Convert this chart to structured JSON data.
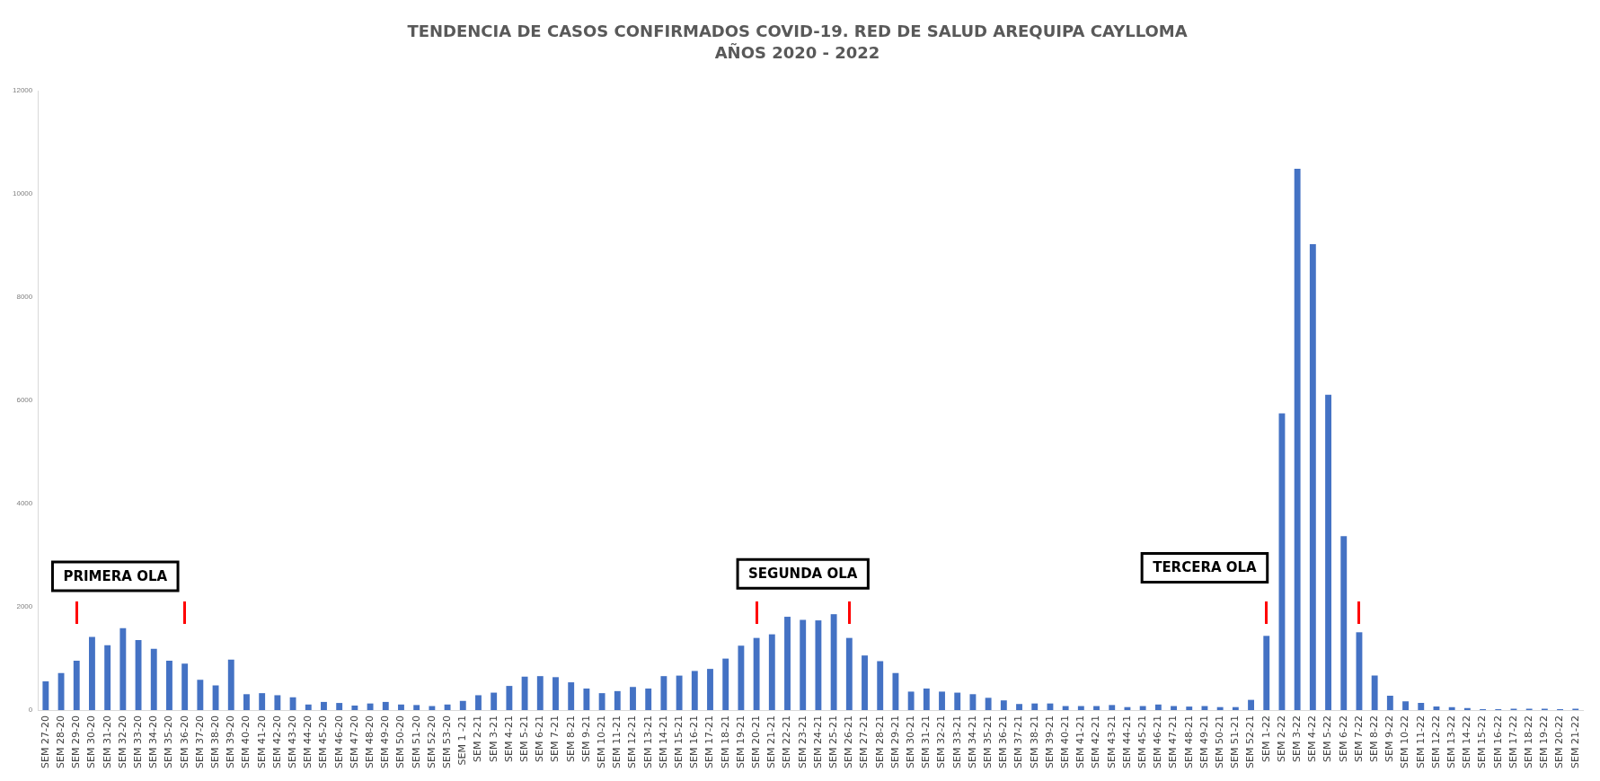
{
  "chart_data": {
    "type": "bar",
    "title": "TENDENCIA DE CASOS CONFIRMADOS COVID-19. RED DE SALUD AREQUIPA CAYLLOMA",
    "subtitle": "AÑOS 2020 - 2022",
    "categories": [
      "SEM 27-20",
      "SEM 28-20",
      "SEM 29-20",
      "SEM 30-20",
      "SEM 31-20",
      "SEM 32-20",
      "SEM 33-20",
      "SEM 34-20",
      "SEM 35-20",
      "SEM 36-20",
      "SEM 37-20",
      "SEM 38-20",
      "SEM 39-20",
      "SEM 40-20",
      "SEM 41-20",
      "SEM 42-20",
      "SEM 43-20",
      "SEM 44-20",
      "SEM 45-20",
      "SEM 46-20",
      "SEM 47-20",
      "SEM 48-20",
      "SEM 49-20",
      "SEM 50-20",
      "SEM 51-20",
      "SEM 52-20",
      "SEM 53-20",
      "SEM 1 -21",
      "SEM 2-21",
      "SEM 3-21",
      "SEM 4-21",
      "SEM 5-21",
      "SEM 6-21",
      "SEM 7-21",
      "SEM 8-21",
      "SEM 9-21",
      "SEM 10-21",
      "SEM 11-21",
      "SEM 12-21",
      "SEM 13-21",
      "SEM 14-21",
      "SEM 15-21",
      "SEM 16-21",
      "SEM 17-21",
      "SEM 18-21",
      "SEM 19-21",
      "SEM 20-21",
      "SEM 21-21",
      "SEM 22-21",
      "SEM 23-21",
      "SEM 24-21",
      "SEM 25-21",
      "SEM 26-21",
      "SEM 27-21",
      "SEM 28-21",
      "SEM 29-21",
      "SEM 30-21",
      "SEM 31-21",
      "SEM 32-21",
      "SEM 33-21",
      "SEM 34-21",
      "SEM 35-21",
      "SEM 36-21",
      "SEM 37-21",
      "SEM 38-21",
      "SEM 39-21",
      "SEM 40-21",
      "SEM 41-21",
      "SEM 42-21",
      "SEM 43-21",
      "SEM 44-21",
      "SEM 45-21",
      "SEM 46-21",
      "SEM 47-21",
      "SEM 48-21",
      "SEM 49-21",
      "SEM 50-21",
      "SEM 51-21",
      "SEM 52-21",
      "SEM 1-22",
      "SEM 2-22",
      "SEM 3-22",
      "SEM 4-22",
      "SEM 5-22",
      "SEM 6-22",
      "SEM 7-22",
      "SEM 8-22",
      "SEM 9-22",
      "SEM 10-22",
      "SEM 11-22",
      "SEM 12-22",
      "SEM 13-22",
      "SEM 14-22",
      "SEM 15-22",
      "SEM 16-22",
      "SEM 17-22",
      "SEM 18-22",
      "SEM 19-22",
      "SEM 20-22",
      "SEM 21-22"
    ],
    "values": [
      560,
      720,
      960,
      1420,
      1260,
      1590,
      1360,
      1190,
      960,
      900,
      590,
      480,
      980,
      310,
      330,
      290,
      250,
      110,
      160,
      140,
      90,
      130,
      160,
      110,
      100,
      80,
      110,
      180,
      290,
      340,
      470,
      650,
      660,
      640,
      540,
      420,
      330,
      370,
      450,
      420,
      660,
      670,
      760,
      800,
      1000,
      1250,
      1400,
      1470,
      1810,
      1750,
      1740,
      1860,
      1400,
      1060,
      950,
      720,
      360,
      420,
      360,
      340,
      310,
      240,
      190,
      120,
      130,
      130,
      80,
      80,
      80,
      100,
      60,
      80,
      110,
      80,
      70,
      80,
      60,
      60,
      200,
      1440,
      5750,
      10490,
      9030,
      6110,
      3370,
      1510,
      670,
      280,
      170,
      140,
      70,
      60,
      40,
      20,
      20,
      30,
      30,
      30,
      20,
      30
    ],
    "color": "#4472c4",
    "ylim": [
      0,
      12000
    ],
    "yticks": [
      0,
      2000,
      4000,
      6000,
      8000,
      10000,
      12000
    ],
    "grid": false,
    "legend": false,
    "annotations": [
      "PRIMERA OLA",
      "SEGUNDA OLA",
      "TERCERA OLA"
    ]
  }
}
